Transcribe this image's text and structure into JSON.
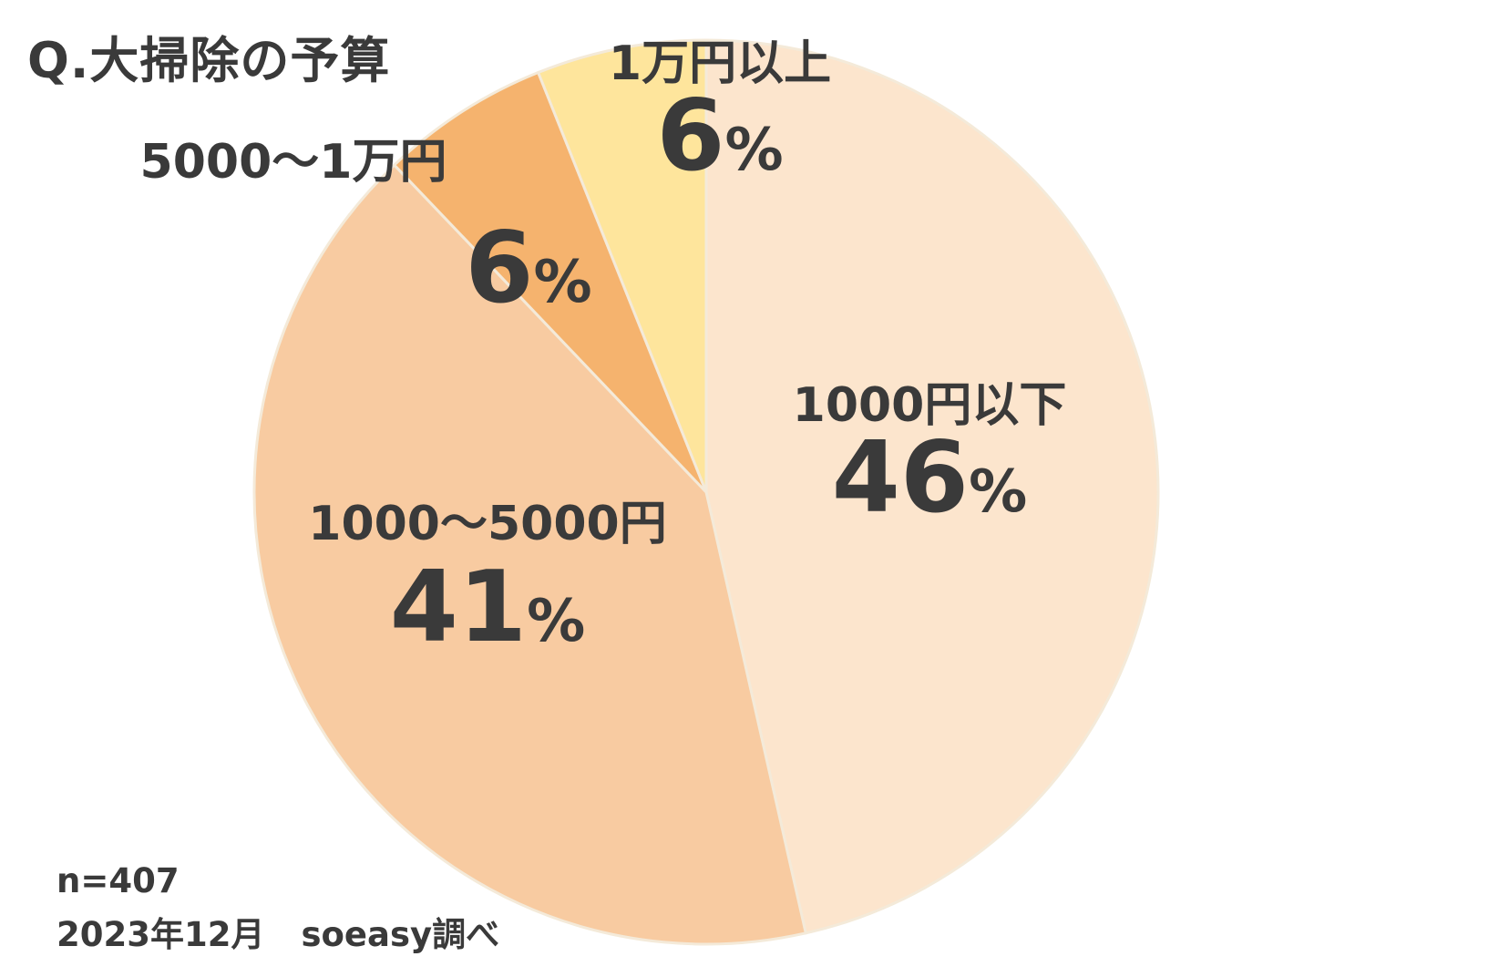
{
  "title": "Q.大掃除の予算",
  "footnote": {
    "sample": "n=407",
    "date": "2023年12月",
    "source": "soeasy調べ"
  },
  "chart_data": {
    "type": "pie",
    "title": "Q.大掃除の予算",
    "start_angle_deg": 0,
    "direction": "clockwise",
    "slices": [
      {
        "label": "1000円以下",
        "value": 46,
        "display": "46",
        "color": "#FCE5CD"
      },
      {
        "label": "1000〜5000円",
        "value": 41,
        "display": "41",
        "color": "#F8CBA1"
      },
      {
        "label": "5000〜1万円",
        "value": 6,
        "display": "6",
        "color": "#F5B36E"
      },
      {
        "label": "1万円以上",
        "value": 6,
        "display": "6",
        "color": "#FEE59C"
      }
    ],
    "percent_symbol": "%",
    "edge_color": "#f4ead9"
  }
}
